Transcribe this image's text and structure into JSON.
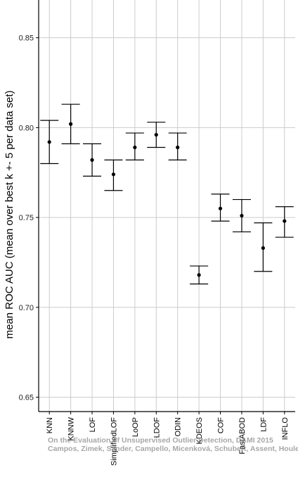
{
  "chart_data": {
    "type": "scatter",
    "ylabel": "mean ROC AUC (mean over best k +- 5 per data set)",
    "xlabel": "",
    "ylim": [
      0.642,
      0.871
    ],
    "yticks": [
      "0.65",
      "0.70",
      "0.75",
      "0.80",
      "0.85"
    ],
    "ytick_values": [
      0.65,
      0.7,
      0.75,
      0.8,
      0.85
    ],
    "grid": true,
    "categories": [
      "KNN",
      "KNNW",
      "LOF",
      "SimplifiedLOF",
      "LoOP",
      "LDOF",
      "ODIN",
      "KDEOS",
      "COF",
      "FastABOD",
      "LDF",
      "INFLO"
    ],
    "series": [
      {
        "values": [
          0.792,
          0.802,
          0.782,
          0.774,
          0.789,
          0.796,
          0.789,
          0.718,
          0.755,
          0.751,
          0.733,
          0.748
        ],
        "lower": [
          0.78,
          0.791,
          0.773,
          0.765,
          0.782,
          0.789,
          0.782,
          0.713,
          0.748,
          0.742,
          0.72,
          0.739
        ],
        "upper": [
          0.804,
          0.813,
          0.791,
          0.782,
          0.797,
          0.803,
          0.797,
          0.723,
          0.763,
          0.76,
          0.747,
          0.756
        ]
      }
    ],
    "colors": {
      "point": "#000000",
      "grid": "#cccccc",
      "axis": "#000000",
      "text": "#000000"
    }
  },
  "watermark": {
    "line1": "On the Evaluation of Unsupervised Outlier Detection, DAMI 2015",
    "line2": "Campos, Zimek, Sander, Campello, Micenková, Schubert, Assent, Houle"
  }
}
